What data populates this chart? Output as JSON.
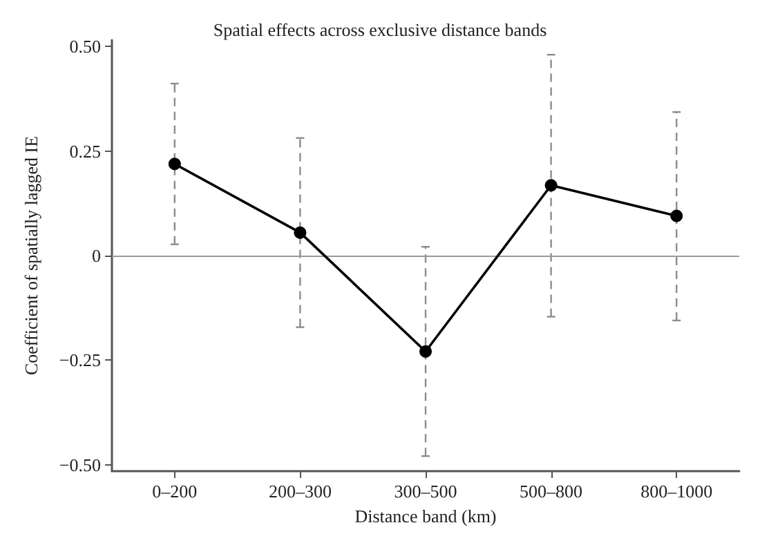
{
  "chart_data": {
    "type": "line",
    "title": "Spatial effects across exclusive distance bands",
    "xlabel": "Distance band (km)",
    "ylabel": "Coefficient of spatially lagged IE",
    "categories": [
      "0–200",
      "200–300",
      "300–500",
      "500–800",
      "800–1000"
    ],
    "series": [
      {
        "color": "#000000",
        "values": [
          0.219,
          0.055,
          -0.229,
          0.168,
          0.095
        ],
        "errors": [
          [
            0.027,
            0.411
          ],
          [
            -0.171,
            0.281
          ],
          [
            -0.479,
            0.021
          ],
          [
            -0.146,
            0.48
          ],
          [
            -0.155,
            0.343
          ]
        ]
      }
    ],
    "ylim": [
      -0.515,
      0.515
    ],
    "yticks": [
      {
        "value": -0.5,
        "label": "−0.50"
      },
      {
        "value": -0.25,
        "label": "−0.25"
      },
      0,
      0.25,
      {
        "value": 0.5,
        "label": "0.50"
      }
    ],
    "ref_lines": [
      {
        "axis": "y",
        "value": 0,
        "color": "#999999",
        "line_style": "solid"
      }
    ],
    "grid": false,
    "marker": "circle",
    "line_style": "solid"
  }
}
